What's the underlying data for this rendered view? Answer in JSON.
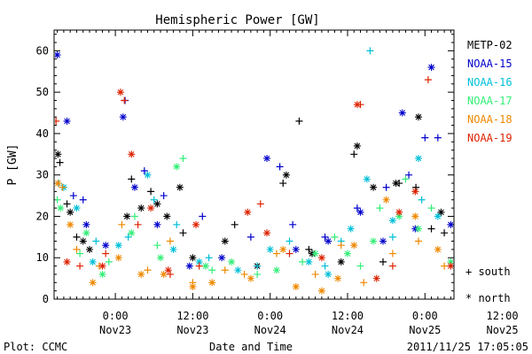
{
  "chart_data": {
    "type": "scatter",
    "title": "Hemispheric Power [GW]",
    "ylabel": "P [GW]",
    "xlabel": "Date and Time",
    "ylim": [
      0,
      65
    ],
    "yticks": [
      0,
      10,
      20,
      30,
      40,
      50,
      60
    ],
    "x_unit": "hours since 2011-11-23 00:00 UT",
    "xlim": [
      -9.5,
      52.5
    ],
    "xticks": [
      {
        "x": 0,
        "time": "0:00",
        "date": "Nov23"
      },
      {
        "x": 12,
        "time": "12:00",
        "date": "Nov23"
      },
      {
        "x": 24,
        "time": "0:00",
        "date": "Nov24"
      },
      {
        "x": 36,
        "time": "12:00",
        "date": "Nov24"
      },
      {
        "x": 48,
        "time": "0:00",
        "date": "Nov25"
      },
      {
        "x": 60,
        "time": "12:00",
        "date": "Nov25"
      }
    ],
    "marker_legend": [
      {
        "symbol": "+",
        "label": "south"
      },
      {
        "symbol": "*",
        "label": "north"
      }
    ],
    "series": [
      {
        "name": "METP-02",
        "color": "#000000",
        "south": [
          [
            -8.6,
            33
          ],
          [
            -7.5,
            23
          ],
          [
            -6,
            15
          ],
          [
            2.5,
            29
          ],
          [
            5.5,
            26
          ],
          [
            10.5,
            16
          ],
          [
            18.5,
            18
          ],
          [
            26,
            28
          ],
          [
            28.5,
            43
          ],
          [
            30,
            12
          ],
          [
            37,
            35
          ],
          [
            41.5,
            9
          ],
          [
            44,
            28
          ],
          [
            46.6,
            27
          ],
          [
            49,
            17
          ],
          [
            51,
            16
          ],
          [
            55,
            13
          ],
          [
            59,
            11
          ],
          [
            64,
            8
          ],
          [
            68,
            25
          ]
        ],
        "north": [
          [
            -8.9,
            35
          ],
          [
            -7,
            21
          ],
          [
            -5,
            14
          ],
          [
            -4,
            12
          ],
          [
            1.8,
            20
          ],
          [
            4,
            22
          ],
          [
            6.5,
            23
          ],
          [
            8,
            20
          ],
          [
            10,
            27
          ],
          [
            12,
            10
          ],
          [
            17,
            14
          ],
          [
            22,
            8
          ],
          [
            26.5,
            30
          ],
          [
            30.5,
            11
          ],
          [
            35,
            9
          ],
          [
            37.5,
            37
          ],
          [
            40,
            27
          ],
          [
            43.5,
            28
          ],
          [
            47,
            44
          ],
          [
            50.5,
            21
          ],
          [
            55.5,
            12
          ],
          [
            58,
            10
          ],
          [
            61,
            15
          ],
          [
            65,
            10
          ],
          [
            70,
            27
          ]
        ]
      },
      {
        "name": "NOAA-15",
        "color": "#0000cc",
        "south": [
          [
            -6.5,
            25
          ],
          [
            -5,
            24
          ],
          [
            1.5,
            48
          ],
          [
            4.5,
            31
          ],
          [
            7.5,
            25
          ],
          [
            13.5,
            20
          ],
          [
            21,
            15
          ],
          [
            25.5,
            32
          ],
          [
            27.5,
            18
          ],
          [
            32.5,
            15
          ],
          [
            37.5,
            22
          ],
          [
            42,
            27
          ],
          [
            45.5,
            30
          ],
          [
            48,
            39
          ],
          [
            50,
            39
          ],
          [
            55,
            36
          ],
          [
            58,
            26
          ],
          [
            63,
            12
          ],
          [
            66,
            10
          ]
        ],
        "north": [
          [
            -9,
            59
          ],
          [
            -7.5,
            43
          ],
          [
            -4.5,
            18
          ],
          [
            -1.5,
            13
          ],
          [
            1.2,
            44
          ],
          [
            3,
            27
          ],
          [
            6.5,
            18
          ],
          [
            11.5,
            8
          ],
          [
            16.5,
            10
          ],
          [
            23.5,
            34
          ],
          [
            28,
            12
          ],
          [
            33,
            14
          ],
          [
            38,
            21
          ],
          [
            41.5,
            14
          ],
          [
            44.5,
            45
          ],
          [
            46.5,
            17
          ],
          [
            49,
            56
          ],
          [
            52,
            18
          ],
          [
            57,
            19
          ],
          [
            60,
            28
          ],
          [
            64,
            16
          ]
        ]
      },
      {
        "name": "NOAA-16",
        "color": "#00bfd8",
        "south": [
          [
            -8.8,
            28
          ],
          [
            -3,
            14
          ],
          [
            2,
            15
          ],
          [
            6,
            24
          ],
          [
            9.5,
            18
          ],
          [
            14.5,
            10
          ],
          [
            22,
            8
          ],
          [
            27,
            14
          ],
          [
            32.5,
            8
          ],
          [
            35,
            14
          ],
          [
            39.5,
            60
          ],
          [
            43,
            15
          ],
          [
            47.5,
            24
          ],
          [
            53,
            16
          ],
          [
            60,
            10
          ]
        ],
        "north": [
          [
            -8,
            27
          ],
          [
            -6,
            22
          ],
          [
            -3.5,
            9
          ],
          [
            0.5,
            13
          ],
          [
            5,
            30
          ],
          [
            9,
            12
          ],
          [
            13,
            9
          ],
          [
            19,
            7
          ],
          [
            24,
            12
          ],
          [
            30,
            9
          ],
          [
            33,
            6
          ],
          [
            36.5,
            17
          ],
          [
            39,
            29
          ],
          [
            43,
            19
          ],
          [
            47,
            34
          ],
          [
            50,
            20
          ],
          [
            54,
            12
          ],
          [
            58,
            5
          ],
          [
            62,
            7
          ],
          [
            66,
            5
          ]
        ]
      },
      {
        "name": "NOAA-17",
        "color": "#33ee77",
        "south": [
          [
            -9,
            24
          ],
          [
            -5.5,
            11
          ],
          [
            -1,
            9
          ],
          [
            3,
            20
          ],
          [
            6.5,
            13
          ],
          [
            10.5,
            34
          ],
          [
            15,
            7
          ],
          [
            22,
            6
          ],
          [
            29,
            9
          ],
          [
            34,
            15
          ],
          [
            38,
            8
          ],
          [
            41,
            22
          ],
          [
            45,
            29
          ],
          [
            49,
            22
          ],
          [
            56,
            14
          ],
          [
            62,
            8
          ]
        ],
        "north": [
          [
            -8.5,
            22
          ],
          [
            -4.5,
            16
          ],
          [
            -2,
            6
          ],
          [
            2.5,
            16
          ],
          [
            7,
            10
          ],
          [
            9.5,
            32
          ],
          [
            14,
            8
          ],
          [
            18,
            9
          ],
          [
            25,
            7
          ],
          [
            31,
            11
          ],
          [
            36,
            11
          ],
          [
            40,
            14
          ],
          [
            44,
            20
          ],
          [
            47,
            17
          ],
          [
            52,
            9
          ],
          [
            55,
            11
          ],
          [
            59,
            12
          ],
          [
            63,
            7
          ]
        ]
      },
      {
        "name": "NOAA-18",
        "color": "#ee8800",
        "south": [
          [
            -8.2,
            27
          ],
          [
            -6,
            12
          ],
          [
            -2.5,
            8
          ],
          [
            1,
            18
          ],
          [
            5,
            7
          ],
          [
            8.5,
            14
          ],
          [
            12,
            4
          ],
          [
            17,
            7
          ],
          [
            20,
            6
          ],
          [
            25,
            11
          ],
          [
            31,
            6
          ],
          [
            35,
            13
          ],
          [
            38.5,
            4
          ],
          [
            43,
            11
          ],
          [
            47,
            14
          ],
          [
            51,
            8
          ],
          [
            56,
            5
          ],
          [
            61,
            5
          ],
          [
            64,
            12
          ]
        ],
        "north": [
          [
            -8.9,
            28
          ],
          [
            -7,
            18
          ],
          [
            -3.5,
            4
          ],
          [
            0.5,
            10
          ],
          [
            4,
            6
          ],
          [
            7.5,
            6
          ],
          [
            12,
            3
          ],
          [
            15,
            4
          ],
          [
            21,
            5
          ],
          [
            26,
            12
          ],
          [
            28,
            3
          ],
          [
            32,
            2
          ],
          [
            34.5,
            5
          ],
          [
            37,
            13
          ],
          [
            42,
            24
          ],
          [
            46.5,
            20
          ],
          [
            50,
            12
          ],
          [
            54,
            7
          ],
          [
            57,
            3
          ],
          [
            60,
            8
          ],
          [
            64,
            3
          ]
        ]
      },
      {
        "name": "NOAA-19",
        "color": "#dd2200",
        "south": [
          [
            -9.2,
            43
          ],
          [
            -5.5,
            8
          ],
          [
            -1.5,
            11
          ],
          [
            1.4,
            48
          ],
          [
            3.5,
            18
          ],
          [
            8.5,
            6
          ],
          [
            13,
            8
          ],
          [
            22.5,
            23
          ],
          [
            27,
            11
          ],
          [
            38,
            47
          ],
          [
            43,
            8
          ],
          [
            48.5,
            53
          ],
          [
            53,
            15
          ],
          [
            58.5,
            13
          ],
          [
            66,
            12
          ]
        ],
        "north": [
          [
            -7.5,
            9
          ],
          [
            -2,
            8
          ],
          [
            0.8,
            50
          ],
          [
            2.5,
            35
          ],
          [
            5.5,
            22
          ],
          [
            8.2,
            7
          ],
          [
            12.5,
            18
          ],
          [
            20.5,
            21
          ],
          [
            23.5,
            16
          ],
          [
            32,
            10
          ],
          [
            37.5,
            47
          ],
          [
            40.5,
            5
          ],
          [
            44,
            21
          ],
          [
            46.5,
            26
          ],
          [
            52,
            8
          ],
          [
            57,
            24
          ],
          [
            61,
            7
          ],
          [
            65,
            7
          ]
        ]
      }
    ]
  },
  "footer": {
    "left": "Plot: CCMC",
    "right": "2011/11/25 17:05:05"
  }
}
